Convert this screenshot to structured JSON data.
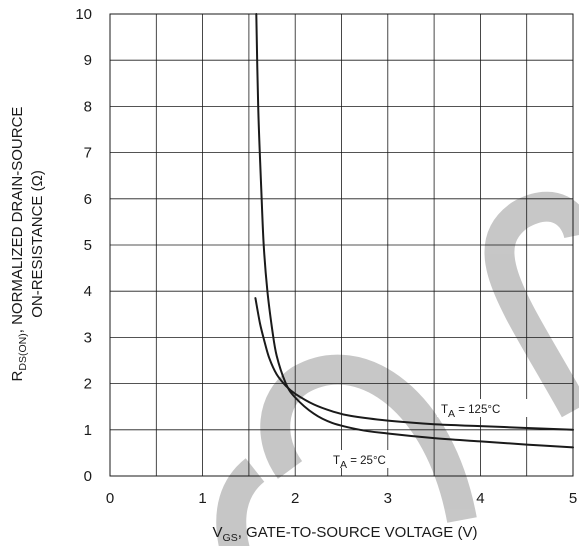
{
  "chart_data": {
    "type": "line",
    "xlim": [
      0,
      5
    ],
    "ylim": [
      0,
      10
    ],
    "x_ticks": [
      "0",
      "1",
      "2",
      "3",
      "4",
      "5"
    ],
    "y_ticks": [
      "0",
      "1",
      "2",
      "3",
      "4",
      "5",
      "6",
      "7",
      "8",
      "9",
      "10"
    ],
    "grid": true,
    "xlabel": {
      "main": "V",
      "sub": "GS",
      "rest": ", GATE-TO-SOURCE VOLTAGE (V)"
    },
    "ylabel": {
      "line1_main": "R",
      "line1_sub": "DS(ON)",
      "line1_rest": ", NORMALIZED DRAIN-SOURCE",
      "line2": "ON-RESISTANCE (Ω)"
    },
    "series": [
      {
        "label_main": "T",
        "label_sub": "A",
        "label_rest": " = 25°C",
        "x": [
          1.58,
          1.6,
          1.63,
          1.66,
          1.7,
          1.75,
          1.8,
          1.9,
          2.0,
          2.2,
          2.4,
          2.7,
          3.0,
          3.5,
          4.0,
          4.5,
          5.0
        ],
        "y": [
          10.0,
          8.0,
          6.4,
          5.0,
          4.0,
          3.2,
          2.6,
          2.0,
          1.7,
          1.35,
          1.15,
          1.0,
          0.92,
          0.82,
          0.75,
          0.68,
          0.62
        ]
      },
      {
        "label_main": "T",
        "label_sub": "A",
        "label_rest": " = 125°C",
        "x": [
          1.57,
          1.62,
          1.67,
          1.72,
          1.8,
          1.9,
          2.0,
          2.2,
          2.4,
          2.6,
          3.0,
          3.5,
          4.0,
          4.5,
          5.0
        ],
        "y": [
          3.85,
          3.3,
          2.9,
          2.55,
          2.2,
          1.95,
          1.78,
          1.55,
          1.4,
          1.3,
          1.2,
          1.12,
          1.08,
          1.04,
          1.0
        ]
      }
    ],
    "colors": {
      "line": "#1a1a1a",
      "grid": "#1a1a1a",
      "watermark": "#999999"
    }
  }
}
